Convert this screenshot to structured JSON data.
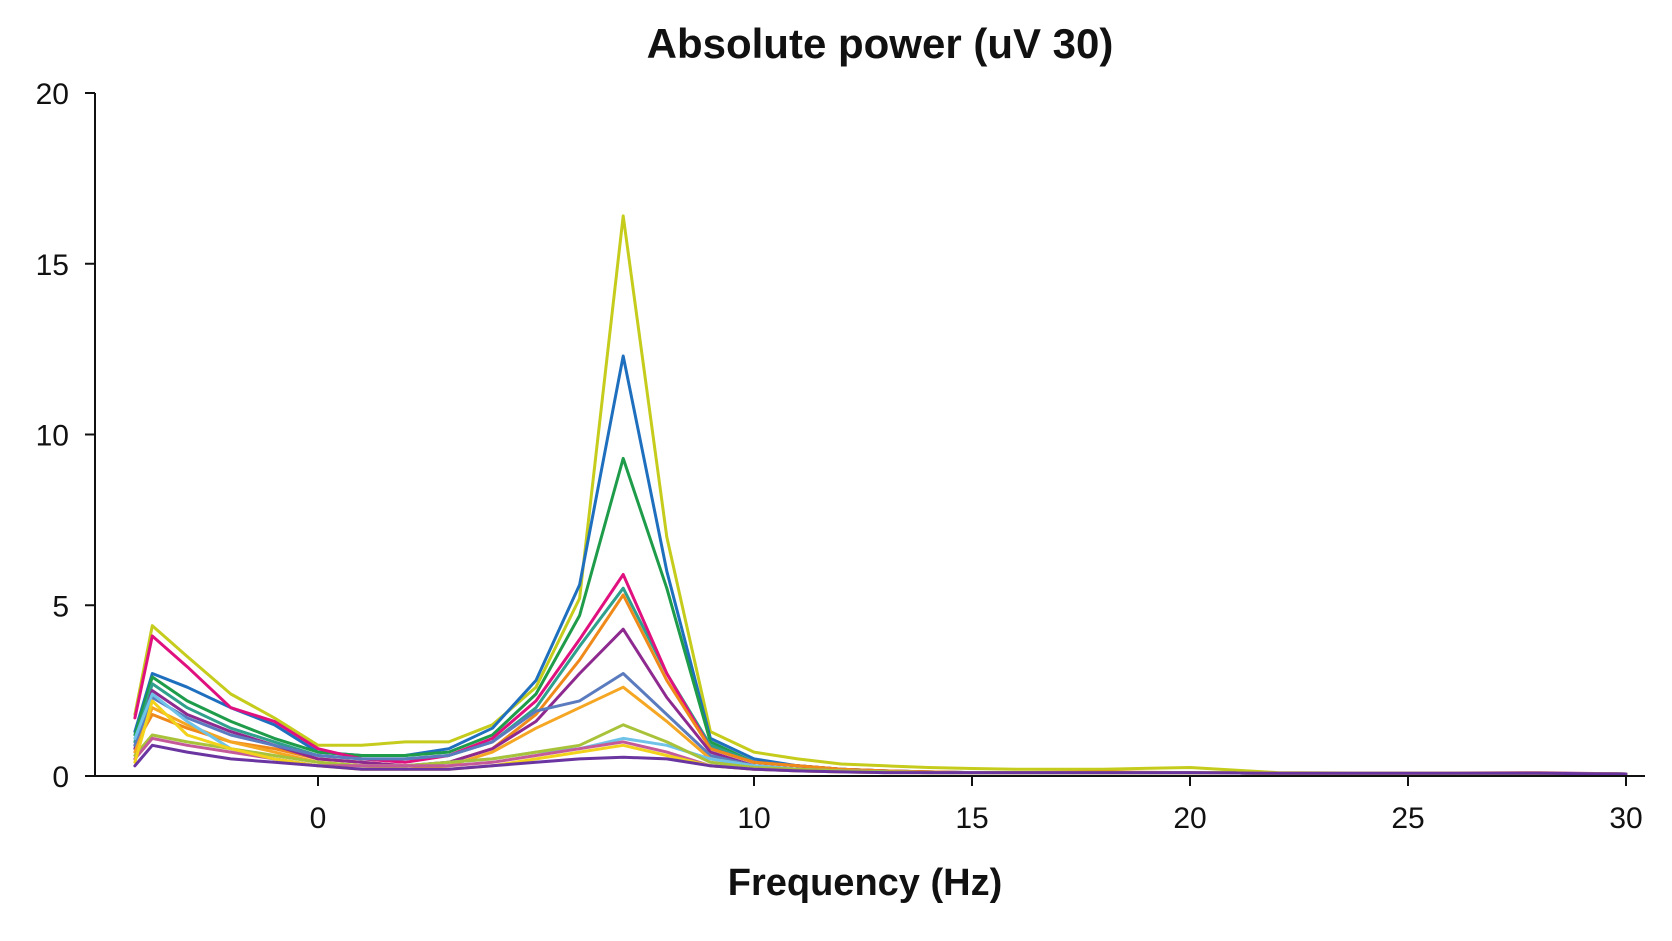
{
  "chart_data": {
    "type": "line",
    "title": "Absolute power (uV 30)",
    "xlabel": "Frequency (Hz)",
    "ylabel": "",
    "ylim": [
      0,
      20
    ],
    "yticks": [
      0,
      5,
      10,
      15,
      20
    ],
    "xticks": [
      {
        "value": 0,
        "label": "0"
      },
      {
        "value": 10,
        "label": "10"
      },
      {
        "value": 15,
        "label": "15"
      },
      {
        "value": 20,
        "label": "20"
      },
      {
        "value": 25,
        "label": "25"
      },
      {
        "value": 30,
        "label": "30"
      }
    ],
    "xlim": [
      -4.2,
      30.4
    ],
    "grid": false,
    "legend": "none",
    "x": [
      -4.2,
      -3.8,
      -3.0,
      -2.0,
      -1.0,
      0.0,
      1.0,
      2.0,
      3.0,
      4.0,
      5.0,
      6.0,
      7.0,
      8.0,
      9.0,
      10.0,
      11.0,
      12.0,
      13.0,
      14.0,
      15.0,
      16.0,
      18.0,
      20.0,
      22.0,
      25.0,
      28.0,
      30.0
    ],
    "series": [
      {
        "color": "#c5cc1c",
        "values": [
          1.8,
          4.4,
          3.5,
          2.4,
          1.7,
          0.9,
          0.9,
          1.0,
          1.0,
          1.5,
          2.6,
          5.2,
          16.4,
          7.0,
          1.3,
          0.7,
          0.5,
          0.35,
          0.3,
          0.25,
          0.22,
          0.2,
          0.2,
          0.25,
          0.1,
          0.08,
          0.08,
          0.06
        ]
      },
      {
        "color": "#1f6fbf",
        "values": [
          1.3,
          3.0,
          2.6,
          2.0,
          1.5,
          0.7,
          0.6,
          0.6,
          0.8,
          1.4,
          2.8,
          5.6,
          12.3,
          6.0,
          1.1,
          0.5,
          0.3,
          0.2,
          0.15,
          0.12,
          0.1,
          0.1,
          0.1,
          0.1,
          0.08,
          0.08,
          0.08,
          0.06
        ]
      },
      {
        "color": "#1e9c4a",
        "values": [
          1.2,
          2.9,
          2.2,
          1.6,
          1.1,
          0.7,
          0.6,
          0.6,
          0.7,
          1.2,
          2.4,
          4.7,
          9.3,
          5.5,
          1.0,
          0.4,
          0.3,
          0.2,
          0.15,
          0.12,
          0.1,
          0.1,
          0.1,
          0.1,
          0.08,
          0.08,
          0.08,
          0.06
        ]
      },
      {
        "color": "#2ea08c",
        "values": [
          1.0,
          2.7,
          2.0,
          1.4,
          1.0,
          0.6,
          0.5,
          0.5,
          0.6,
          1.0,
          2.0,
          3.8,
          5.5,
          3.0,
          0.9,
          0.4,
          0.3,
          0.2,
          0.15,
          0.1,
          0.1,
          0.1,
          0.1,
          0.1,
          0.08,
          0.08,
          0.08,
          0.06
        ]
      },
      {
        "color": "#e0117f",
        "values": [
          1.7,
          4.1,
          3.2,
          2.0,
          1.6,
          0.8,
          0.5,
          0.4,
          0.6,
          1.1,
          2.2,
          4.0,
          5.9,
          3.0,
          0.8,
          0.4,
          0.3,
          0.2,
          0.15,
          0.12,
          0.1,
          0.1,
          0.1,
          0.1,
          0.08,
          0.08,
          0.08,
          0.06
        ]
      },
      {
        "color": "#ef8a1a",
        "values": [
          0.9,
          1.8,
          1.4,
          1.0,
          0.8,
          0.5,
          0.4,
          0.3,
          0.4,
          0.8,
          1.8,
          3.4,
          5.3,
          2.8,
          0.8,
          0.4,
          0.3,
          0.2,
          0.15,
          0.12,
          0.1,
          0.1,
          0.12,
          0.1,
          0.08,
          0.08,
          0.08,
          0.06
        ]
      },
      {
        "color": "#8e2a8f",
        "values": [
          0.8,
          2.5,
          1.8,
          1.3,
          0.9,
          0.5,
          0.4,
          0.3,
          0.4,
          0.8,
          1.6,
          3.0,
          4.3,
          2.3,
          0.7,
          0.3,
          0.2,
          0.15,
          0.12,
          0.1,
          0.1,
          0.1,
          0.1,
          0.1,
          0.08,
          0.08,
          0.08,
          0.06
        ]
      },
      {
        "color": "#5b7bbf",
        "values": [
          0.9,
          2.3,
          1.7,
          1.2,
          0.9,
          0.6,
          0.5,
          0.5,
          0.6,
          1.0,
          1.9,
          2.2,
          3.0,
          1.8,
          0.6,
          0.3,
          0.2,
          0.15,
          0.12,
          0.1,
          0.1,
          0.1,
          0.1,
          0.1,
          0.08,
          0.08,
          0.08,
          0.06
        ]
      },
      {
        "color": "#f5a623",
        "values": [
          0.7,
          2.0,
          1.5,
          1.0,
          0.7,
          0.4,
          0.3,
          0.2,
          0.3,
          0.7,
          1.4,
          2.0,
          2.6,
          1.6,
          0.5,
          0.3,
          0.2,
          0.15,
          0.12,
          0.1,
          0.1,
          0.1,
          0.1,
          0.1,
          0.08,
          0.08,
          0.08,
          0.06
        ]
      },
      {
        "color": "#6fc3e8",
        "values": [
          1.1,
          2.4,
          1.6,
          0.8,
          0.5,
          0.3,
          0.3,
          0.3,
          0.4,
          0.5,
          0.7,
          0.8,
          1.1,
          0.9,
          0.5,
          0.3,
          0.2,
          0.15,
          0.12,
          0.1,
          0.1,
          0.1,
          0.1,
          0.1,
          0.08,
          0.08,
          0.08,
          0.06
        ]
      },
      {
        "color": "#a8c23a",
        "values": [
          0.6,
          1.2,
          1.0,
          0.8,
          0.6,
          0.4,
          0.3,
          0.3,
          0.4,
          0.5,
          0.7,
          0.9,
          1.5,
          1.0,
          0.4,
          0.25,
          0.2,
          0.15,
          0.12,
          0.1,
          0.1,
          0.1,
          0.1,
          0.1,
          0.08,
          0.08,
          0.08,
          0.06
        ]
      },
      {
        "color": "#c45a9a",
        "values": [
          0.5,
          1.1,
          0.9,
          0.7,
          0.5,
          0.3,
          0.3,
          0.3,
          0.3,
          0.4,
          0.6,
          0.8,
          1.0,
          0.7,
          0.3,
          0.2,
          0.15,
          0.12,
          0.1,
          0.1,
          0.1,
          0.1,
          0.1,
          0.1,
          0.08,
          0.08,
          0.1,
          0.06
        ]
      },
      {
        "color": "#f2d21b",
        "values": [
          0.4,
          2.2,
          1.2,
          0.8,
          0.5,
          0.3,
          0.2,
          0.2,
          0.2,
          0.3,
          0.5,
          0.7,
          0.9,
          0.6,
          0.3,
          0.2,
          0.15,
          0.12,
          0.1,
          0.1,
          0.1,
          0.1,
          0.1,
          0.1,
          0.08,
          0.08,
          0.08,
          0.06
        ]
      },
      {
        "color": "#6a35a0",
        "values": [
          0.3,
          0.9,
          0.7,
          0.5,
          0.4,
          0.3,
          0.2,
          0.2,
          0.2,
          0.3,
          0.4,
          0.5,
          0.55,
          0.5,
          0.3,
          0.2,
          0.15,
          0.12,
          0.1,
          0.1,
          0.1,
          0.1,
          0.1,
          0.1,
          0.08,
          0.08,
          0.08,
          0.06
        ]
      }
    ]
  }
}
